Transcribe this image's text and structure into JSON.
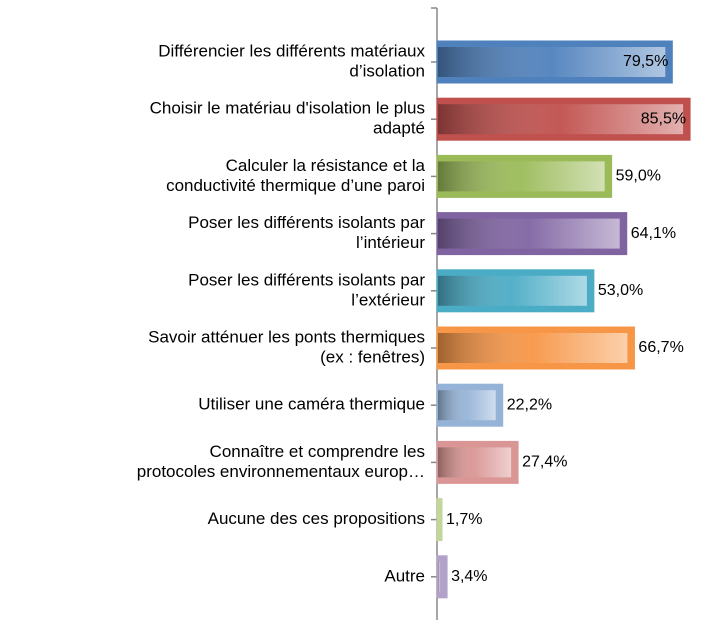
{
  "chart_data": {
    "type": "bar",
    "orientation": "horizontal",
    "categories": [
      [
        "Différencier les différents matériaux",
        "d’isolation"
      ],
      [
        "Choisir le matériau d'isolation le plus",
        "adapté"
      ],
      [
        "Calculer la résistance et la",
        "conductivité thermique d’une paroi"
      ],
      [
        "Poser les différents isolants par",
        "l’intérieur"
      ],
      [
        "Poser les différents isolants par",
        "l’extérieur"
      ],
      [
        "Savoir atténuer les ponts thermiques",
        "(ex : fenêtres)"
      ],
      [
        "Utiliser une caméra thermique"
      ],
      [
        "Connaître et comprendre les",
        "protocoles environnementaux europ…"
      ],
      [
        "Aucune des ces propositions"
      ],
      [
        "Autre"
      ]
    ],
    "values": [
      79.5,
      85.5,
      59.0,
      64.1,
      53.0,
      66.7,
      22.2,
      27.4,
      1.7,
      3.4
    ],
    "value_labels": [
      "79,5%",
      "85,5%",
      "59,0%",
      "64,1%",
      "53,0%",
      "66,7%",
      "22,2%",
      "27,4%",
      "1,7%",
      "3,4%"
    ],
    "colors": [
      "#4f81bd",
      "#c0504d",
      "#9bbb59",
      "#8064a2",
      "#4bacc6",
      "#f79646",
      "#95b3d7",
      "#d99694",
      "#c3d69b",
      "#b3a2c7"
    ]
  }
}
